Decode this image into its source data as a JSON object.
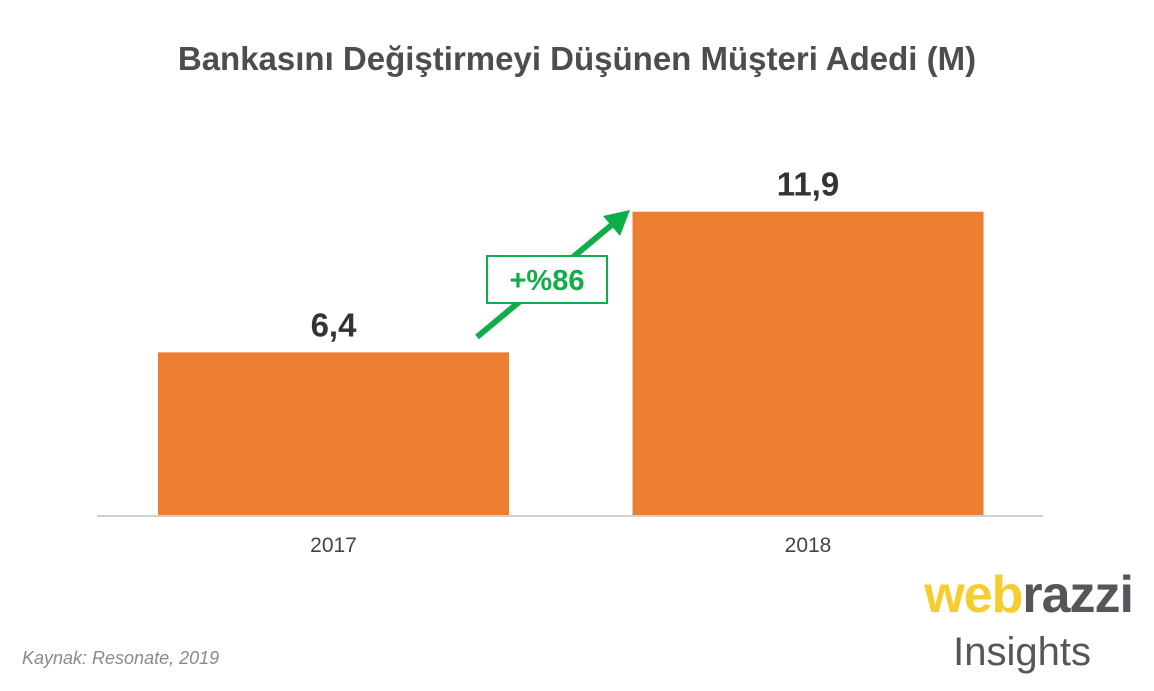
{
  "chart_data": {
    "type": "bar",
    "title": "Bankasını Değiştirmeyi Düşünen Müşteri Adedi (M)",
    "categories": [
      "2017",
      "2018"
    ],
    "values": [
      6.4,
      11.9
    ],
    "value_labels": [
      "6,4",
      "11,9"
    ],
    "xlabel": "",
    "ylabel": "",
    "ylim": [
      0,
      14
    ],
    "grid": false,
    "annotation": "+%86",
    "bar_color": "#ed7d31",
    "annotation_color": "#0fae4b"
  },
  "source": "Kaynak: Resonate, 2019",
  "logo": {
    "part1": "web",
    "part2": "razzi",
    "sub": "Insights",
    "color1": "#f5cd2e",
    "color2": "#54575a"
  }
}
